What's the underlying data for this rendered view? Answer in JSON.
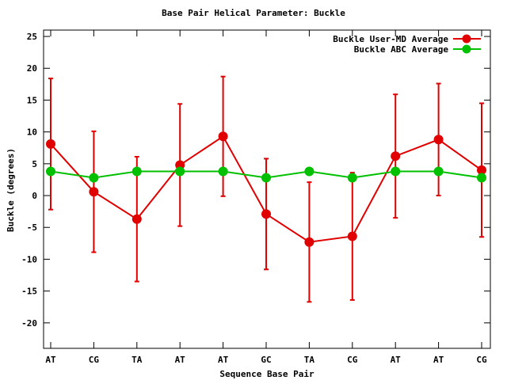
{
  "chart_data": {
    "type": "line",
    "title": "Base Pair Helical Parameter: Buckle",
    "xlabel": "Sequence Base Pair",
    "ylabel": "Buckle (degrees)",
    "categories": [
      "AT",
      "CG",
      "TA",
      "AT",
      "AT",
      "GC",
      "TA",
      "CG",
      "AT",
      "AT",
      "CG"
    ],
    "ylim": [
      -24,
      26
    ],
    "yticks": [
      25,
      20,
      15,
      10,
      5,
      0,
      -5,
      -10,
      -15,
      -20
    ],
    "grid": false,
    "legend_position": "top-right",
    "series": [
      {
        "name": "Buckle User-MD Average",
        "color": "#e00000",
        "values": [
          8.1,
          0.6,
          -3.7,
          4.8,
          9.3,
          -2.9,
          -7.3,
          -6.4,
          6.2,
          8.8,
          4.0
        ],
        "error": [
          10.3,
          9.5,
          9.8,
          9.6,
          9.4,
          8.7,
          9.4,
          10.0,
          9.7,
          8.8,
          10.5
        ]
      },
      {
        "name": "Buckle ABC Average",
        "color": "#00c000",
        "values": [
          3.8,
          2.8,
          3.8,
          3.8,
          3.8,
          2.8,
          3.8,
          2.8,
          3.8,
          3.8,
          2.8
        ]
      }
    ]
  }
}
